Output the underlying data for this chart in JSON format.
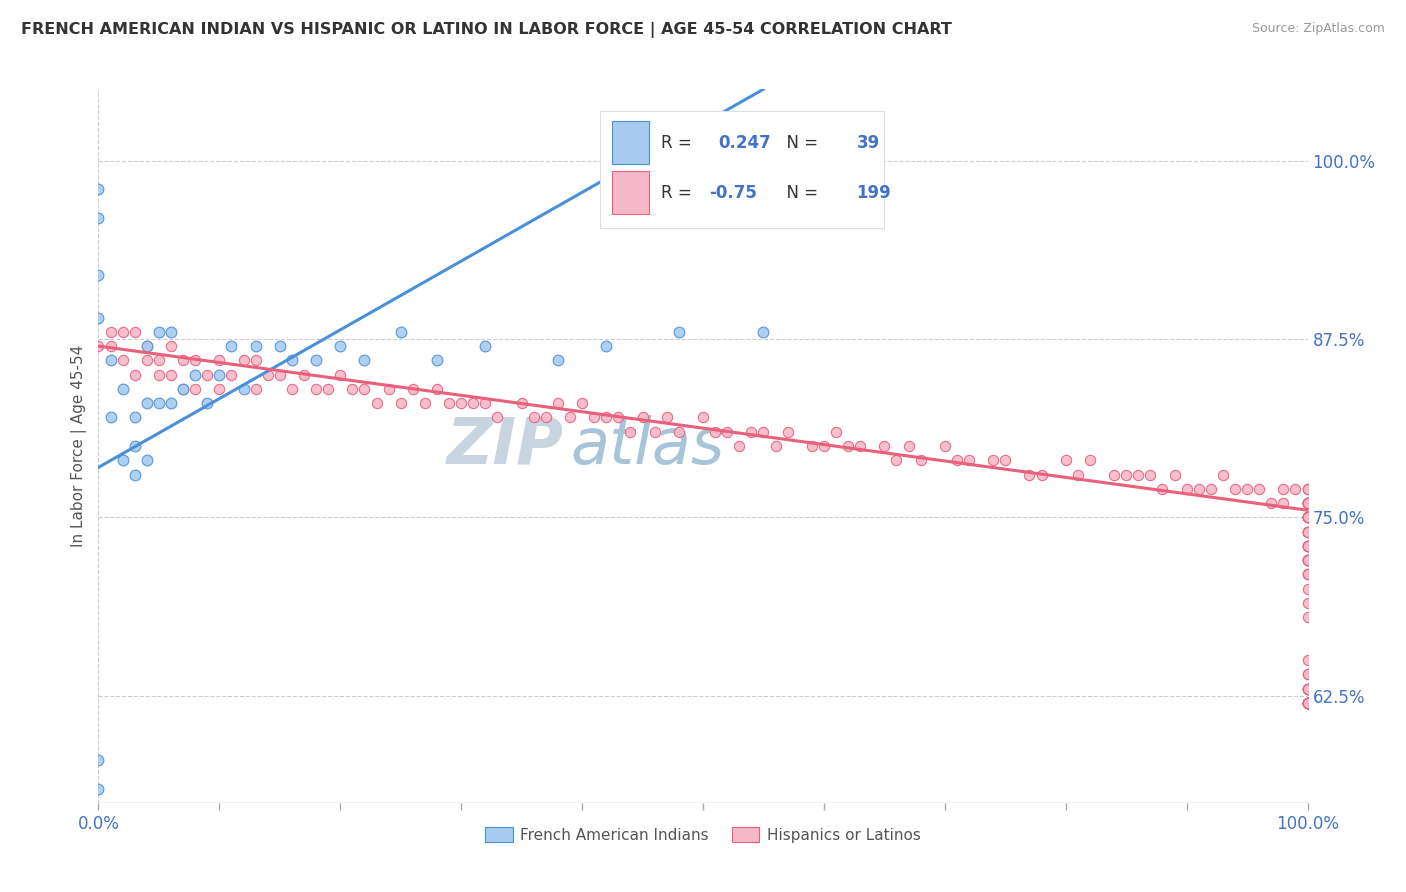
{
  "title": "FRENCH AMERICAN INDIAN VS HISPANIC OR LATINO IN LABOR FORCE | AGE 45-54 CORRELATION CHART",
  "source": "Source: ZipAtlas.com",
  "ylabel": "In Labor Force | Age 45-54",
  "right_yticks": [
    0.625,
    0.75,
    0.875,
    1.0
  ],
  "right_yticklabels": [
    "62.5%",
    "75.0%",
    "87.5%",
    "100.0%"
  ],
  "blue_R": 0.247,
  "blue_N": 39,
  "pink_R": -0.75,
  "pink_N": 199,
  "blue_color": "#A8CBF0",
  "pink_color": "#F5B8C8",
  "blue_line_color": "#4A90D9",
  "pink_line_color": "#E8607A",
  "blue_scatter_x": [
    0.0,
    0.0,
    0.0,
    0.0,
    0.0,
    0.0,
    0.01,
    0.01,
    0.02,
    0.02,
    0.03,
    0.03,
    0.03,
    0.04,
    0.04,
    0.04,
    0.05,
    0.05,
    0.06,
    0.06,
    0.07,
    0.08,
    0.09,
    0.1,
    0.11,
    0.12,
    0.13,
    0.15,
    0.16,
    0.18,
    0.2,
    0.22,
    0.25,
    0.28,
    0.32,
    0.38,
    0.42,
    0.48,
    0.55
  ],
  "blue_scatter_y": [
    0.56,
    0.58,
    0.98,
    0.96,
    0.92,
    0.89,
    0.86,
    0.82,
    0.84,
    0.79,
    0.82,
    0.8,
    0.78,
    0.87,
    0.83,
    0.79,
    0.88,
    0.83,
    0.88,
    0.83,
    0.84,
    0.85,
    0.83,
    0.85,
    0.87,
    0.84,
    0.87,
    0.87,
    0.86,
    0.86,
    0.87,
    0.86,
    0.88,
    0.86,
    0.87,
    0.86,
    0.87,
    0.88,
    0.88
  ],
  "pink_scatter_x": [
    0.0,
    0.01,
    0.01,
    0.02,
    0.02,
    0.03,
    0.03,
    0.04,
    0.04,
    0.05,
    0.05,
    0.06,
    0.06,
    0.07,
    0.07,
    0.08,
    0.08,
    0.09,
    0.1,
    0.1,
    0.11,
    0.12,
    0.13,
    0.13,
    0.14,
    0.15,
    0.16,
    0.17,
    0.18,
    0.19,
    0.2,
    0.21,
    0.22,
    0.23,
    0.24,
    0.25,
    0.26,
    0.27,
    0.28,
    0.29,
    0.3,
    0.31,
    0.32,
    0.33,
    0.35,
    0.36,
    0.37,
    0.38,
    0.39,
    0.4,
    0.41,
    0.42,
    0.43,
    0.44,
    0.45,
    0.46,
    0.47,
    0.48,
    0.5,
    0.51,
    0.52,
    0.53,
    0.54,
    0.55,
    0.56,
    0.57,
    0.59,
    0.6,
    0.61,
    0.62,
    0.63,
    0.65,
    0.66,
    0.67,
    0.68,
    0.7,
    0.71,
    0.72,
    0.74,
    0.75,
    0.77,
    0.78,
    0.8,
    0.81,
    0.82,
    0.84,
    0.85,
    0.86,
    0.87,
    0.88,
    0.89,
    0.9,
    0.91,
    0.92,
    0.93,
    0.94,
    0.95,
    0.96,
    0.97,
    0.98,
    0.98,
    0.99,
    1.0,
    1.0,
    1.0,
    1.0,
    1.0,
    1.0,
    1.0,
    1.0,
    1.0,
    1.0,
    1.0,
    1.0,
    1.0,
    1.0,
    1.0,
    1.0,
    1.0,
    1.0,
    1.0,
    1.0,
    1.0,
    1.0,
    1.0,
    1.0,
    1.0,
    1.0,
    1.0,
    1.0,
    1.0,
    1.0,
    1.0,
    1.0,
    1.0,
    1.0,
    1.0,
    1.0,
    1.0,
    1.0,
    1.0,
    1.0,
    1.0,
    1.0,
    1.0,
    1.0,
    1.0,
    1.0,
    1.0,
    1.0,
    1.0,
    1.0,
    1.0,
    1.0,
    1.0,
    1.0,
    1.0,
    1.0,
    1.0,
    1.0,
    1.0,
    1.0,
    1.0,
    1.0,
    1.0,
    1.0,
    1.0,
    1.0,
    1.0,
    1.0,
    1.0,
    1.0,
    1.0,
    1.0,
    1.0,
    1.0,
    1.0,
    1.0,
    1.0,
    1.0,
    1.0,
    1.0,
    1.0,
    1.0,
    1.0,
    1.0,
    1.0,
    1.0,
    1.0
  ],
  "pink_scatter_y": [
    0.87,
    0.88,
    0.87,
    0.88,
    0.86,
    0.88,
    0.85,
    0.87,
    0.86,
    0.86,
    0.85,
    0.87,
    0.85,
    0.86,
    0.84,
    0.86,
    0.84,
    0.85,
    0.86,
    0.84,
    0.85,
    0.86,
    0.86,
    0.84,
    0.85,
    0.85,
    0.84,
    0.85,
    0.84,
    0.84,
    0.85,
    0.84,
    0.84,
    0.83,
    0.84,
    0.83,
    0.84,
    0.83,
    0.84,
    0.83,
    0.83,
    0.83,
    0.83,
    0.82,
    0.83,
    0.82,
    0.82,
    0.83,
    0.82,
    0.83,
    0.82,
    0.82,
    0.82,
    0.81,
    0.82,
    0.81,
    0.82,
    0.81,
    0.82,
    0.81,
    0.81,
    0.8,
    0.81,
    0.81,
    0.8,
    0.81,
    0.8,
    0.8,
    0.81,
    0.8,
    0.8,
    0.8,
    0.79,
    0.8,
    0.79,
    0.8,
    0.79,
    0.79,
    0.79,
    0.79,
    0.78,
    0.78,
    0.79,
    0.78,
    0.79,
    0.78,
    0.78,
    0.78,
    0.78,
    0.77,
    0.78,
    0.77,
    0.77,
    0.77,
    0.78,
    0.77,
    0.77,
    0.77,
    0.76,
    0.77,
    0.76,
    0.77,
    0.76,
    0.77,
    0.76,
    0.76,
    0.77,
    0.76,
    0.76,
    0.76,
    0.75,
    0.77,
    0.76,
    0.75,
    0.76,
    0.76,
    0.75,
    0.76,
    0.75,
    0.76,
    0.75,
    0.76,
    0.75,
    0.75,
    0.76,
    0.75,
    0.75,
    0.75,
    0.74,
    0.75,
    0.74,
    0.75,
    0.74,
    0.74,
    0.74,
    0.73,
    0.74,
    0.73,
    0.73,
    0.73,
    0.73,
    0.72,
    0.73,
    0.72,
    0.72,
    0.73,
    0.72,
    0.72,
    0.72,
    0.71,
    0.72,
    0.72,
    0.71,
    0.71,
    0.7,
    0.69,
    0.68,
    0.65,
    0.64,
    0.63,
    0.63,
    0.63,
    0.64,
    0.63,
    0.62,
    0.63,
    0.62,
    0.63,
    0.62,
    0.62,
    0.62,
    0.62,
    0.62,
    0.62,
    0.62,
    0.62,
    0.62,
    0.63,
    0.62,
    0.62,
    0.62,
    0.62,
    0.62,
    0.62,
    0.62,
    0.62,
    0.63,
    0.62,
    0.62
  ],
  "blue_line_x0": 0.0,
  "blue_line_x1": 0.55,
  "blue_line_y0": 0.785,
  "blue_line_y1": 1.05,
  "pink_line_x0": 0.0,
  "pink_line_x1": 1.0,
  "pink_line_y0": 0.87,
  "pink_line_y1": 0.755,
  "xlim": [
    0.0,
    1.0
  ],
  "ylim": [
    0.55,
    1.05
  ],
  "background_color": "#FFFFFF",
  "watermark_text1": "ZIP",
  "watermark_text2": "atlas",
  "watermark_color1": "#C8D4E0",
  "watermark_color2": "#A8C4D8"
}
